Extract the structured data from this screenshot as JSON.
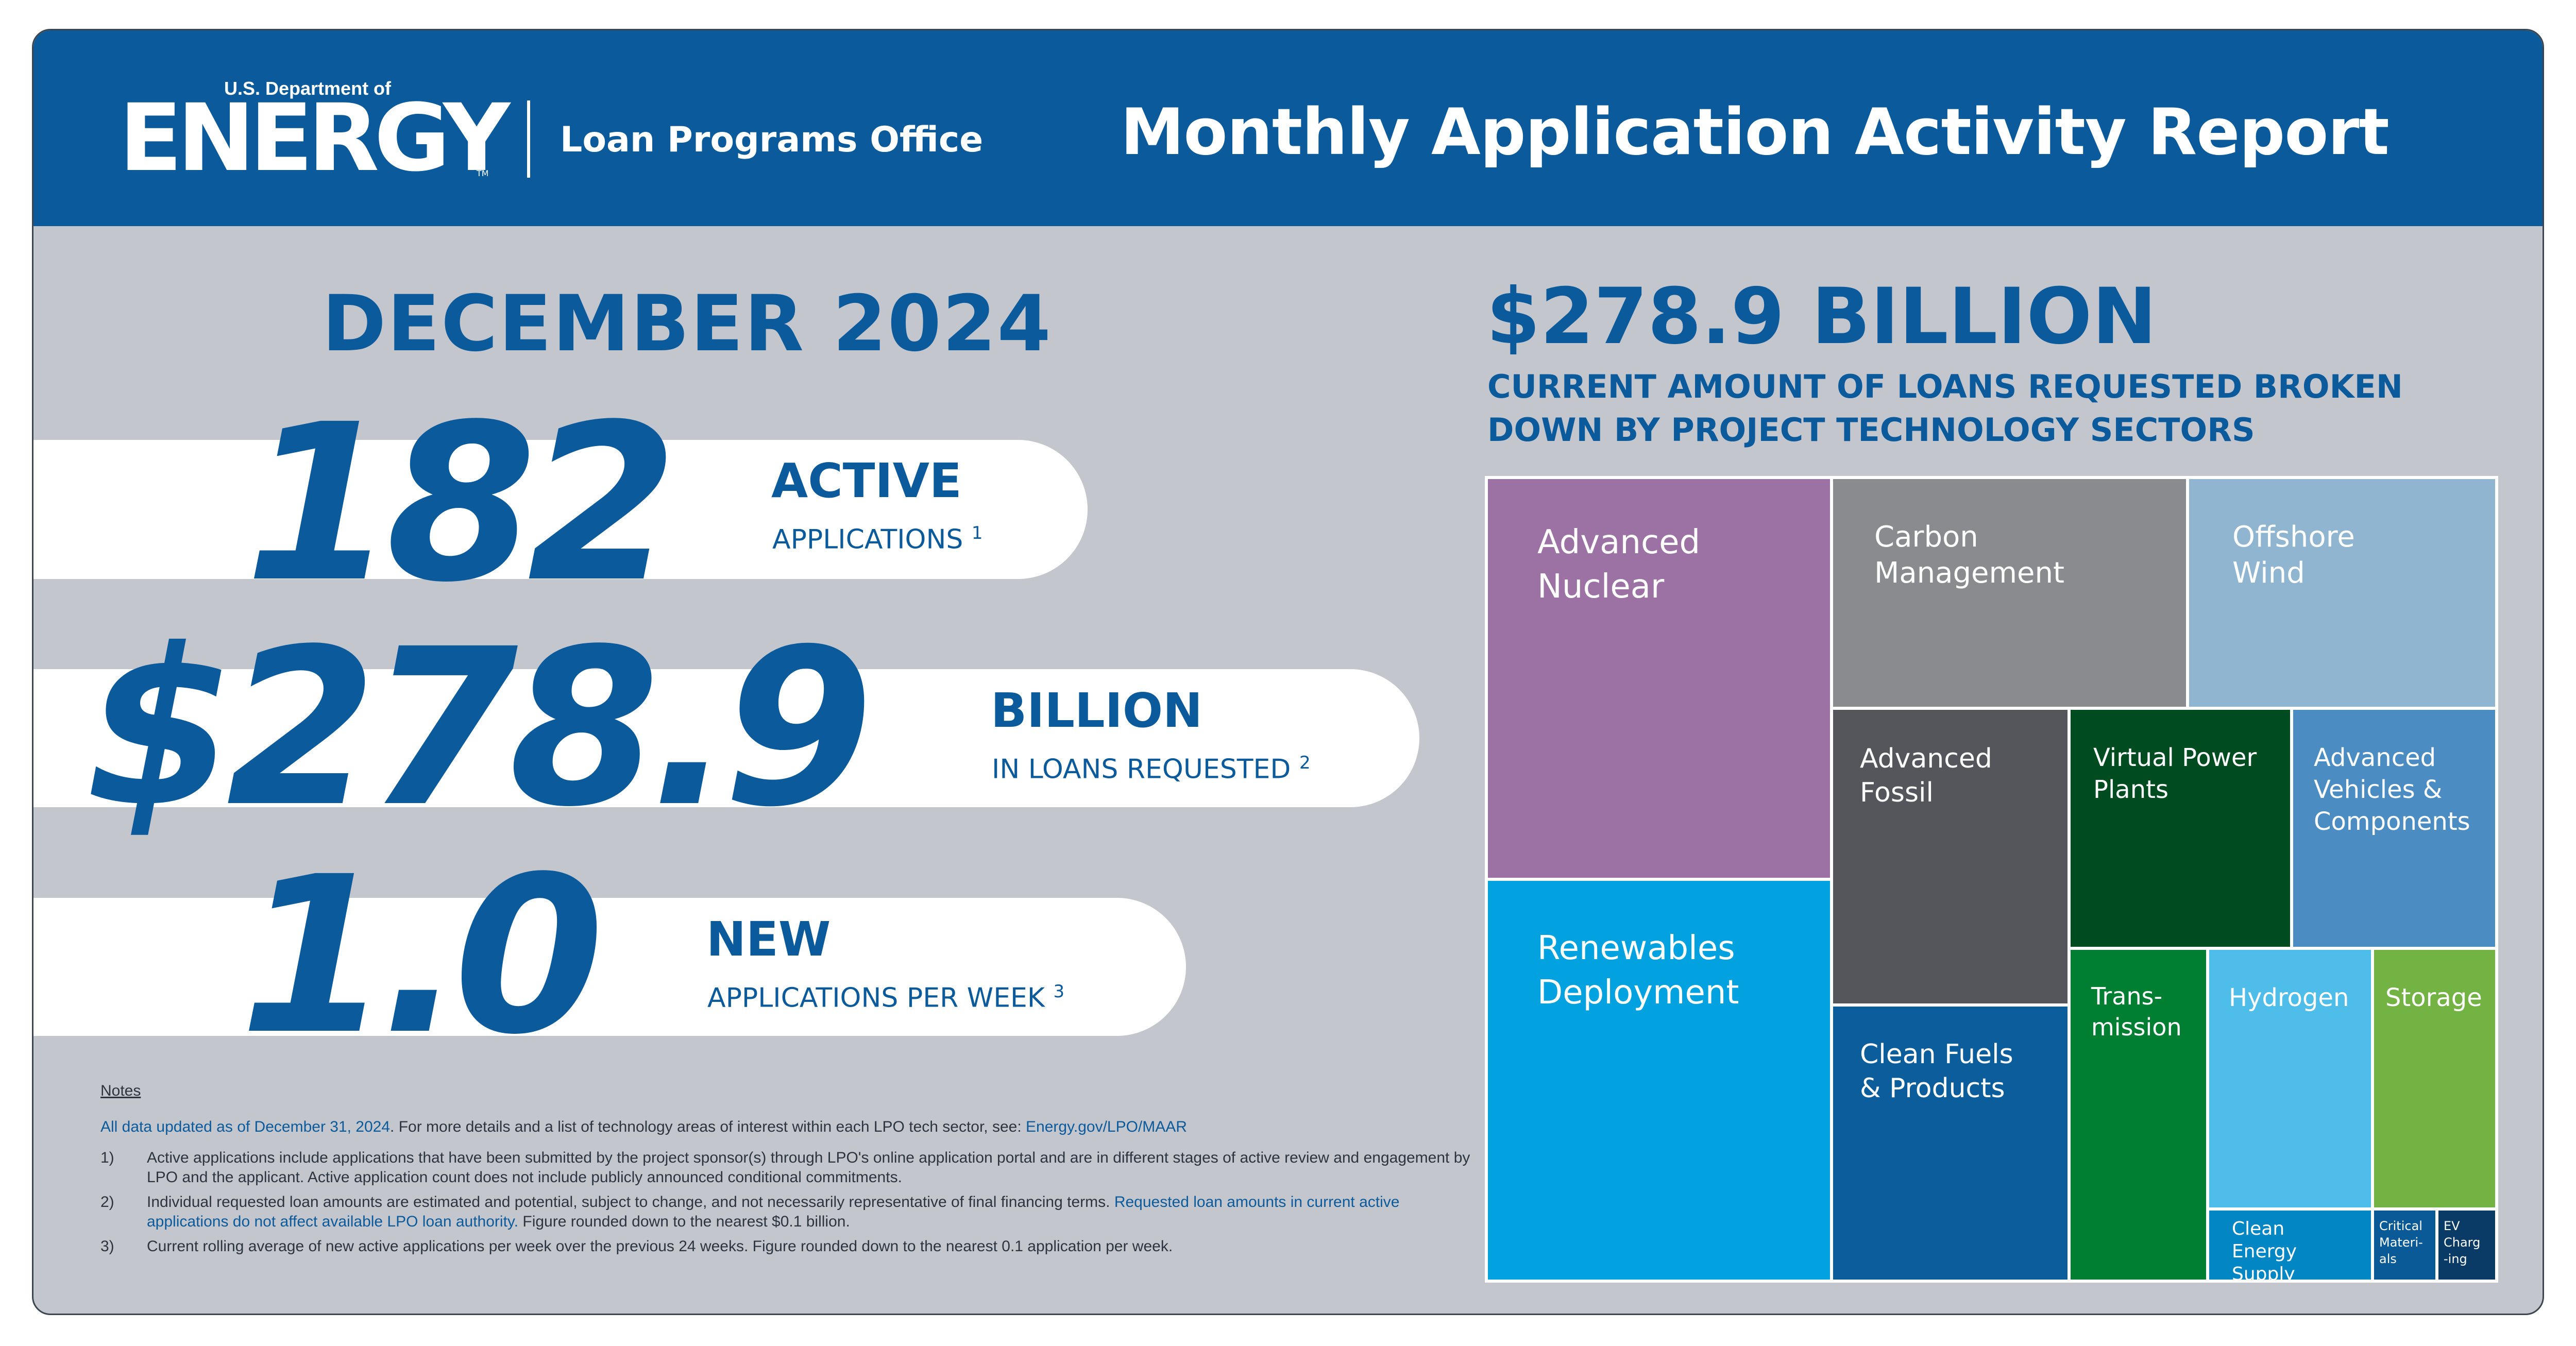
{
  "header": {
    "agency_super": "U.S. Department of",
    "agency_word": "ENERGY",
    "trademark": "TM",
    "office": "Loan Programs Office",
    "report_title": "Monthly Application Activity Report"
  },
  "period": "DECEMBER 2024",
  "stats": [
    {
      "value": "182",
      "head": "ACTIVE",
      "sub": "APPLICATIONS",
      "footnote": "1"
    },
    {
      "value": "$278.9",
      "head": "BILLION",
      "sub": "IN LOANS REQUESTED",
      "footnote": "2"
    },
    {
      "value": "1.0",
      "head": "NEW",
      "sub": "APPLICATIONS PER WEEK",
      "footnote": "3"
    }
  ],
  "notes": {
    "label": "Notes",
    "updated_lead": "All data updated as of December 31, 2024",
    "updated_text": ". For more details and a list of technology areas of interest within each LPO tech sector, see: ",
    "updated_link": "Energy.gov/LPO/MAAR",
    "items": [
      {
        "num": "1)",
        "text": "Active applications include applications that have been submitted by the project sponsor(s) through LPO's online application portal and are in different stages of active review and engagement by LPO and the applicant. Active application count does not include publicly announced conditional commitments.",
        "link": "",
        "after": ""
      },
      {
        "num": "2)",
        "text": "Individual requested loan amounts are estimated and potential, subject to change, and not necessarily representative of final financing terms. ",
        "link": "Requested loan amounts in current active applications do not affect available LPO loan authority.",
        "after": " Figure rounded down to the nearest $0.1 billion."
      },
      {
        "num": "3)",
        "text": "Current rolling average of new active applications per week over the previous 24 weeks. Figure rounded down to the nearest 0.1 application per week.",
        "link": "",
        "after": ""
      }
    ]
  },
  "treemap": {
    "total": "$278.9 BILLION",
    "subtitle": "CURRENT AMOUNT OF LOANS REQUESTED BROKEN DOWN BY PROJECT TECHNOLOGY SECTORS",
    "sectors": [
      {
        "label": "Advanced\nNuclear",
        "color": "#9b72a3"
      },
      {
        "label": "Renewables\nDeployment",
        "color": "#02a1df"
      },
      {
        "label": "Carbon\nManagement",
        "color": "#8a8b8e"
      },
      {
        "label": "Offshore\nWind",
        "color": "#8fb5d0"
      },
      {
        "label": "Advanced\nFossil",
        "color": "#54565b"
      },
      {
        "label": "Clean Fuels\n& Products",
        "color": "#0c5d9c"
      },
      {
        "label": "Virtual Power\nPlants",
        "color": "#004c21"
      },
      {
        "label": "Advanced\nVehicles &\nComponents",
        "color": "#4b8dc3"
      },
      {
        "label": "Trans-\nmission",
        "color": "#007f33"
      },
      {
        "label": "Hydrogen",
        "color": "#4fbde9"
      },
      {
        "label": "Storage",
        "color": "#72b344"
      },
      {
        "label": "Clean Energy\nSupply Chain",
        "color": "#0387c4"
      },
      {
        "label": "Critical\nMateri-\nals",
        "color": "#0a5a98"
      },
      {
        "label": "EV\nCharg\n-ing",
        "color": "#0a3a66"
      }
    ]
  }
}
